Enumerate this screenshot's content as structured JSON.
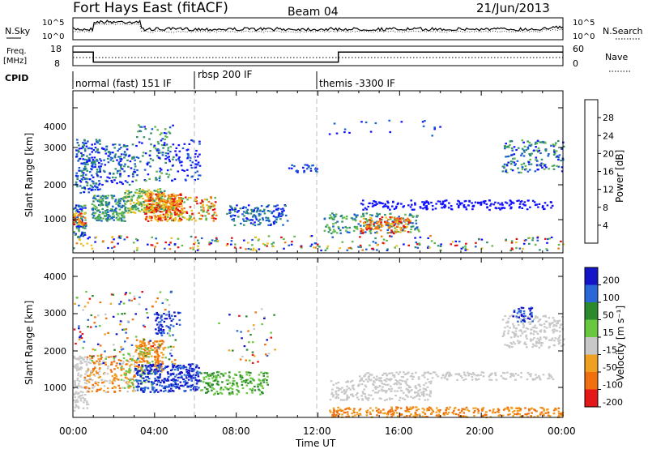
{
  "header": {
    "station": "Fort Hays East (fitACF)",
    "beam": "Beam 04",
    "date": "21/Jun/2013"
  },
  "summary": {
    "nsky_label": "N.Sky",
    "nsky_ticks": [
      "10^5",
      "10^0"
    ],
    "nsearch_label": "N.Search",
    "nsearch_ticks": [
      "10^5",
      "10^0"
    ],
    "freq_label": "Freq.",
    "freq_unit": "[MHz]",
    "freq_ticks": [
      "18",
      "8"
    ],
    "nave_label": "Nave",
    "nave_ticks": [
      "60",
      "0"
    ],
    "cpid_label": "CPID",
    "cpid_modes": [
      {
        "label": "normal (fast) 151 IF",
        "start_hour": 0.0
      },
      {
        "label": "rbsp 200 IF",
        "start_hour": 6.0
      },
      {
        "label": "themis -3300 IF",
        "start_hour": 12.0
      }
    ],
    "freq_steps": [
      {
        "from": 0.0,
        "to": 1.0,
        "value": 15
      },
      {
        "from": 1.0,
        "to": 13.0,
        "value": 9.8
      },
      {
        "from": 13.0,
        "to": 24.0,
        "value": 15
      }
    ]
  },
  "chart_data": [
    {
      "type": "heatmap",
      "name": "power",
      "xlabel": "",
      "ylabel": "Slant Range [km]",
      "xlim": [
        0,
        24
      ],
      "ylim": [
        200,
        4500
      ],
      "yticks": [
        "1000",
        "2000",
        "3000",
        "4000"
      ],
      "colorbar": {
        "label": "Power [dB]",
        "ticks": [
          "4",
          "8",
          "12",
          "16",
          "20",
          "24",
          "28"
        ],
        "colors": [
          "#1010ff",
          "#1a5fd0",
          "#2f8f6a",
          "#5fb84a",
          "#f0c020",
          "#f07a10",
          "#e21010"
        ]
      }
    },
    {
      "type": "heatmap",
      "name": "velocity",
      "xlabel": "Time UT",
      "ylabel": "Slant Range [km]",
      "xlim": [
        0,
        24
      ],
      "ylim": [
        200,
        4500
      ],
      "yticks": [
        "1000",
        "2000",
        "3000",
        "4000"
      ],
      "xticks": [
        "00:00",
        "04:00",
        "08:00",
        "12:00",
        "16:00",
        "20:00",
        "00:00"
      ],
      "colorbar": {
        "label": "Velocity [m s⁻¹]",
        "ticks": [
          "200",
          "100",
          "50",
          "15",
          "-15",
          "-50",
          "-100",
          "-200"
        ],
        "colors": [
          "#1414c8",
          "#2a68d8",
          "#2c8a2c",
          "#68c840",
          "#c8c8c8",
          "#f0a020",
          "#f07010",
          "#e41818"
        ]
      }
    }
  ]
}
